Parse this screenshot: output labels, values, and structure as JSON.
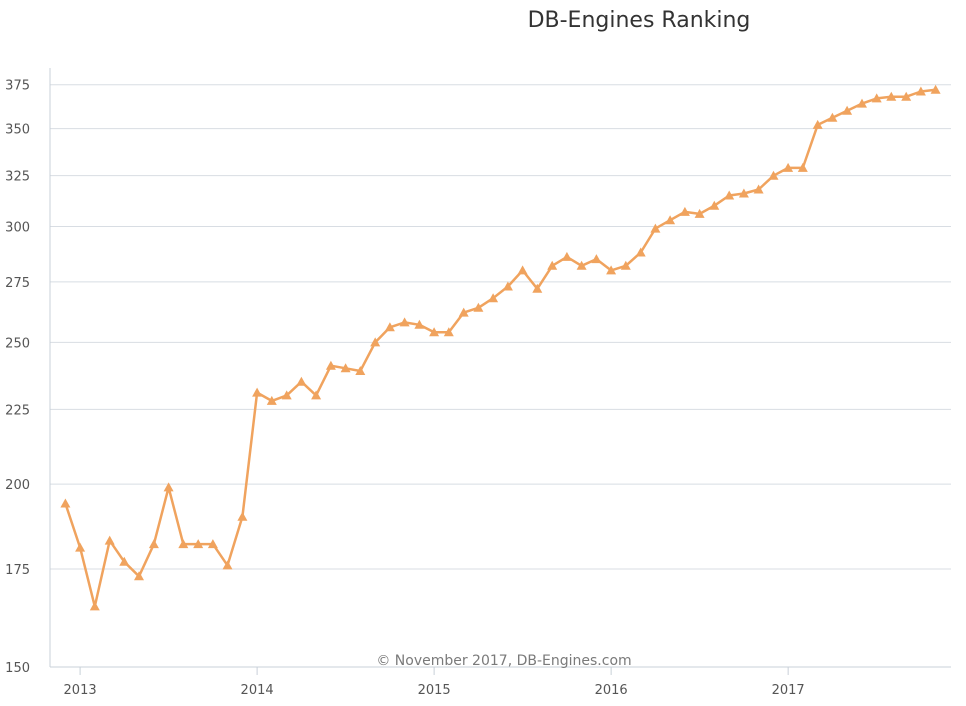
{
  "chart_data": {
    "type": "line",
    "title": "DB-Engines Ranking",
    "credit": "© November 2017, DB-Engines.com",
    "xlabel": "",
    "ylabel": "",
    "y_scale": "log",
    "ylim": [
      150,
      385
    ],
    "xlim": [
      2012.83,
      2017.92
    ],
    "y_ticks": [
      150,
      175,
      200,
      225,
      250,
      275,
      300,
      325,
      350,
      375
    ],
    "x_ticks": [
      {
        "value": 2013,
        "label": "2013"
      },
      {
        "value": 2014,
        "label": "2014"
      },
      {
        "value": 2015,
        "label": "2015"
      },
      {
        "value": 2016,
        "label": "2016"
      },
      {
        "value": 2017,
        "label": "2017"
      }
    ],
    "color": "#f0a35e",
    "marker": "triangle",
    "grid": true,
    "series": [
      {
        "name": "DB-Engines Ranking score",
        "x": [
          2012.917,
          2013.0,
          2013.083,
          2013.167,
          2013.25,
          2013.333,
          2013.417,
          2013.5,
          2013.583,
          2013.667,
          2013.75,
          2013.833,
          2013.917,
          2014.0,
          2014.083,
          2014.167,
          2014.25,
          2014.333,
          2014.417,
          2014.5,
          2014.583,
          2014.667,
          2014.75,
          2014.833,
          2014.917,
          2015.0,
          2015.083,
          2015.167,
          2015.25,
          2015.333,
          2015.417,
          2015.5,
          2015.583,
          2015.667,
          2015.75,
          2015.833,
          2015.917,
          2016.0,
          2016.083,
          2016.167,
          2016.25,
          2016.333,
          2016.417,
          2016.5,
          2016.583,
          2016.667,
          2016.75,
          2016.833,
          2016.917,
          2017.0,
          2017.083,
          2017.167,
          2017.25,
          2017.333,
          2017.417,
          2017.5,
          2017.583,
          2017.667,
          2017.75,
          2017.833
        ],
        "values": [
          194,
          181,
          165,
          183,
          177,
          173,
          182,
          199,
          182,
          182,
          182,
          176,
          190,
          231,
          228,
          230,
          235,
          230,
          241,
          240,
          239,
          250,
          256,
          258,
          257,
          254,
          254,
          262,
          264,
          268,
          273,
          280,
          272,
          282,
          286,
          282,
          285,
          280,
          282,
          288,
          299,
          303,
          307,
          306,
          310,
          315,
          316,
          318,
          325,
          329,
          329,
          352,
          356,
          360,
          364,
          367,
          368,
          368,
          371,
          372
        ]
      }
    ]
  }
}
